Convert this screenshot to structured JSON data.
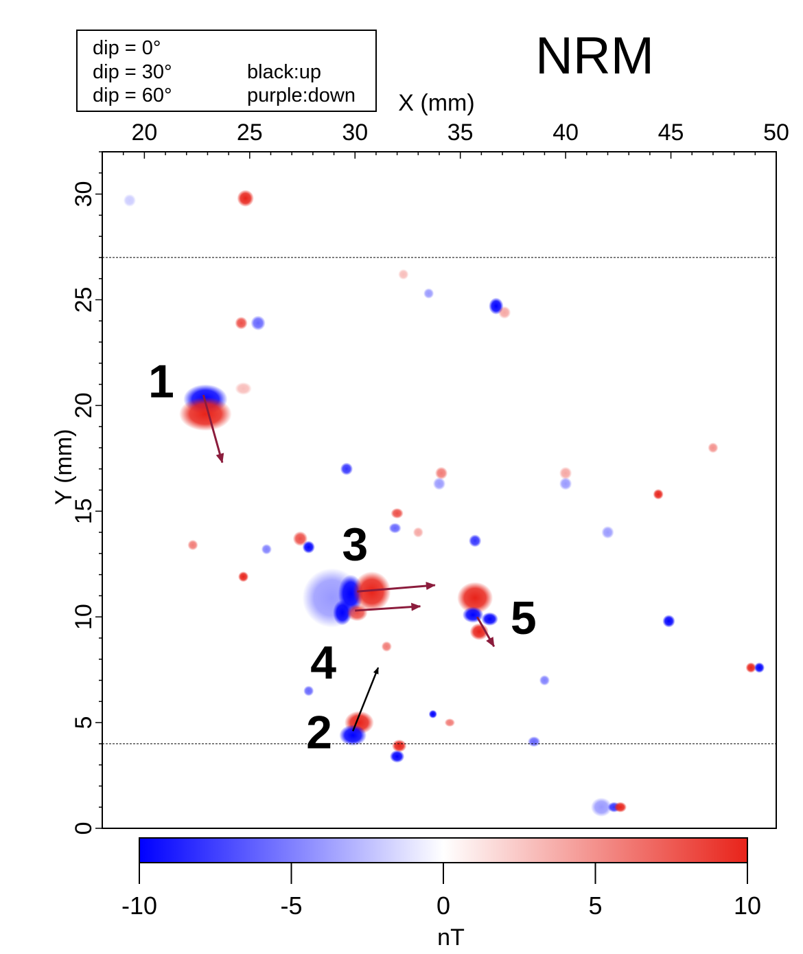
{
  "chart_data": {
    "type": "heatmap",
    "title": "NRM",
    "xlabel": "X (mm)",
    "ylabel": "Y (mm)",
    "xlim": [
      18,
      50
    ],
    "ylim": [
      0,
      32
    ],
    "x_ticks": [
      20,
      25,
      30,
      35,
      40,
      45,
      50
    ],
    "y_ticks": [
      0,
      5,
      10,
      15,
      20,
      25,
      30
    ],
    "colorbar": {
      "label": "nT",
      "range": [
        -10,
        10
      ],
      "ticks": [
        -10,
        -5,
        0,
        5,
        10
      ],
      "colors": [
        "#0000ff",
        "#ffffff",
        "#e8231a"
      ]
    },
    "horizontal_lines_y": [
      27,
      4
    ],
    "legend": {
      "rows": [
        {
          "dip": "dip = 0°",
          "note": ""
        },
        {
          "dip": "dip = 30°",
          "note": "black:up"
        },
        {
          "dip": "dip = 60°",
          "note": "purple:down"
        }
      ]
    },
    "region_labels": [
      {
        "text": "1",
        "x": 20.8,
        "y": 21.2
      },
      {
        "text": "3",
        "x": 30.0,
        "y": 13.5
      },
      {
        "text": "5",
        "x": 38.0,
        "y": 10.0
      },
      {
        "text": "4",
        "x": 28.5,
        "y": 7.9
      },
      {
        "text": "2",
        "x": 28.3,
        "y": 4.6
      }
    ],
    "arrows": [
      {
        "color": "purple",
        "x1": 22.8,
        "y1": 20.5,
        "x2": 23.7,
        "y2": 17.3
      },
      {
        "color": "purple",
        "x1": 30.1,
        "y1": 11.2,
        "x2": 33.8,
        "y2": 11.5
      },
      {
        "color": "purple",
        "x1": 30.0,
        "y1": 10.3,
        "x2": 33.1,
        "y2": 10.5
      },
      {
        "color": "purple",
        "x1": 35.8,
        "y1": 10.0,
        "x2": 36.6,
        "y2": 8.6
      },
      {
        "color": "black",
        "x1": 29.9,
        "y1": 4.6,
        "x2": 31.1,
        "y2": 7.6
      }
    ],
    "dipoles": [
      {
        "x": 22.9,
        "y": 20.3,
        "value": -10,
        "rx": 1.05,
        "ry": 0.7
      },
      {
        "x": 22.9,
        "y": 19.6,
        "value": 10,
        "rx": 1.25,
        "ry": 0.8
      },
      {
        "x": 24.7,
        "y": 20.8,
        "value": 3,
        "rx": 0.4,
        "ry": 0.3
      },
      {
        "x": 24.8,
        "y": 29.8,
        "value": 10,
        "rx": 0.4,
        "ry": 0.4
      },
      {
        "x": 19.3,
        "y": 29.7,
        "value": -2,
        "rx": 0.3,
        "ry": 0.3
      },
      {
        "x": 24.6,
        "y": 23.9,
        "value": 8,
        "rx": 0.3,
        "ry": 0.3
      },
      {
        "x": 25.4,
        "y": 23.9,
        "value": -6,
        "rx": 0.35,
        "ry": 0.35
      },
      {
        "x": 36.7,
        "y": 24.7,
        "value": -10,
        "rx": 0.35,
        "ry": 0.4
      },
      {
        "x": 37.1,
        "y": 24.4,
        "value": 4,
        "rx": 0.3,
        "ry": 0.3
      },
      {
        "x": 33.5,
        "y": 25.3,
        "value": -4,
        "rx": 0.25,
        "ry": 0.25
      },
      {
        "x": 32.3,
        "y": 26.2,
        "value": 3,
        "rx": 0.25,
        "ry": 0.25
      },
      {
        "x": 29.8,
        "y": 11.1,
        "value": -10,
        "rx": 0.6,
        "ry": 0.9
      },
      {
        "x": 29.4,
        "y": 10.2,
        "value": -10,
        "rx": 0.45,
        "ry": 0.6
      },
      {
        "x": 30.8,
        "y": 11.2,
        "value": 10,
        "rx": 0.9,
        "ry": 0.95
      },
      {
        "x": 30.1,
        "y": 10.2,
        "value": 8,
        "rx": 0.5,
        "ry": 0.4
      },
      {
        "x": 28.9,
        "y": 10.9,
        "value": -4,
        "rx": 1.4,
        "ry": 1.4
      },
      {
        "x": 35.7,
        "y": 10.9,
        "value": 10,
        "rx": 0.85,
        "ry": 0.75
      },
      {
        "x": 35.6,
        "y": 10.1,
        "value": -10,
        "rx": 0.5,
        "ry": 0.38
      },
      {
        "x": 36.4,
        "y": 9.9,
        "value": -10,
        "rx": 0.4,
        "ry": 0.32
      },
      {
        "x": 35.9,
        "y": 9.3,
        "value": 10,
        "rx": 0.45,
        "ry": 0.4
      },
      {
        "x": 30.2,
        "y": 5.0,
        "value": 10,
        "rx": 0.7,
        "ry": 0.55
      },
      {
        "x": 29.9,
        "y": 4.4,
        "value": -10,
        "rx": 0.65,
        "ry": 0.5
      },
      {
        "x": 32.1,
        "y": 3.9,
        "value": 10,
        "rx": 0.35,
        "ry": 0.3
      },
      {
        "x": 32.0,
        "y": 3.4,
        "value": -10,
        "rx": 0.35,
        "ry": 0.3
      },
      {
        "x": 27.4,
        "y": 13.7,
        "value": 8,
        "rx": 0.35,
        "ry": 0.35
      },
      {
        "x": 27.8,
        "y": 13.3,
        "value": -10,
        "rx": 0.3,
        "ry": 0.3
      },
      {
        "x": 32.0,
        "y": 14.9,
        "value": 8,
        "rx": 0.3,
        "ry": 0.25
      },
      {
        "x": 31.9,
        "y": 14.2,
        "value": -6,
        "rx": 0.3,
        "ry": 0.25
      },
      {
        "x": 35.7,
        "y": 13.6,
        "value": -8,
        "rx": 0.3,
        "ry": 0.3
      },
      {
        "x": 24.7,
        "y": 11.9,
        "value": 10,
        "rx": 0.25,
        "ry": 0.25
      },
      {
        "x": 22.3,
        "y": 13.4,
        "value": 6,
        "rx": 0.25,
        "ry": 0.25
      },
      {
        "x": 29.6,
        "y": 17.0,
        "value": -8,
        "rx": 0.3,
        "ry": 0.3
      },
      {
        "x": 34.1,
        "y": 16.8,
        "value": 6,
        "rx": 0.3,
        "ry": 0.3
      },
      {
        "x": 34.0,
        "y": 16.3,
        "value": -4,
        "rx": 0.3,
        "ry": 0.3
      },
      {
        "x": 40.0,
        "y": 16.8,
        "value": 4,
        "rx": 0.3,
        "ry": 0.3
      },
      {
        "x": 40.0,
        "y": 16.3,
        "value": -4,
        "rx": 0.3,
        "ry": 0.3
      },
      {
        "x": 44.4,
        "y": 15.8,
        "value": 10,
        "rx": 0.25,
        "ry": 0.25
      },
      {
        "x": 44.9,
        "y": 9.8,
        "value": -10,
        "rx": 0.3,
        "ry": 0.3
      },
      {
        "x": 48.8,
        "y": 7.6,
        "value": 10,
        "rx": 0.25,
        "ry": 0.25
      },
      {
        "x": 49.2,
        "y": 7.6,
        "value": -10,
        "rx": 0.25,
        "ry": 0.25
      },
      {
        "x": 42.3,
        "y": 1.0,
        "value": -8,
        "rx": 0.3,
        "ry": 0.25
      },
      {
        "x": 42.6,
        "y": 1.0,
        "value": 10,
        "rx": 0.3,
        "ry": 0.25
      },
      {
        "x": 41.7,
        "y": 1.0,
        "value": -4,
        "rx": 0.5,
        "ry": 0.45
      },
      {
        "x": 33.7,
        "y": 5.4,
        "value": -10,
        "rx": 0.2,
        "ry": 0.2
      },
      {
        "x": 34.5,
        "y": 5.0,
        "value": 6,
        "rx": 0.25,
        "ry": 0.2
      },
      {
        "x": 38.5,
        "y": 4.1,
        "value": -6,
        "rx": 0.3,
        "ry": 0.25
      },
      {
        "x": 25.8,
        "y": 13.2,
        "value": -5,
        "rx": 0.25,
        "ry": 0.25
      },
      {
        "x": 33.0,
        "y": 14.0,
        "value": 4,
        "rx": 0.25,
        "ry": 0.25
      },
      {
        "x": 27.8,
        "y": 6.5,
        "value": -6,
        "rx": 0.25,
        "ry": 0.25
      },
      {
        "x": 31.5,
        "y": 8.6,
        "value": 6,
        "rx": 0.25,
        "ry": 0.25
      },
      {
        "x": 39.0,
        "y": 7.0,
        "value": -5,
        "rx": 0.25,
        "ry": 0.25
      },
      {
        "x": 42.0,
        "y": 14.0,
        "value": -4,
        "rx": 0.3,
        "ry": 0.3
      },
      {
        "x": 47.0,
        "y": 18.0,
        "value": 5,
        "rx": 0.25,
        "ry": 0.25
      }
    ]
  }
}
